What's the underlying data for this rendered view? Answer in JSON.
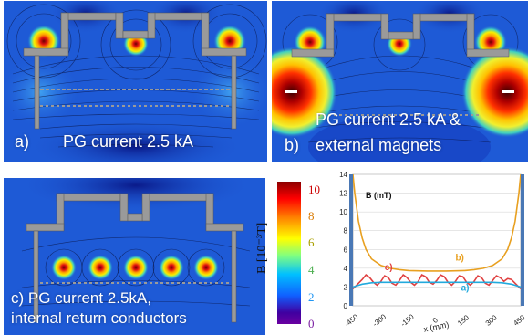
{
  "panels": {
    "a": {
      "letter": "a)",
      "text": "PG current 2.5 kA"
    },
    "b": {
      "letter": "b)",
      "text_line1": "PG current 2.5 kA &",
      "text_line2": "external magnets"
    },
    "c": {
      "text_line1": "c) PG current 2.5kA,",
      "text_line2": "internal return conductors"
    }
  },
  "colorbar": {
    "unit_label": "B [10⁻³T]",
    "ticks": [
      "10",
      "8",
      "6",
      "4",
      "2",
      "0"
    ],
    "tick_colors": [
      "#cc0000",
      "#d97a00",
      "#aaa000",
      "#4caf50",
      "#2196f3",
      "#7b1fa2"
    ],
    "min": 0,
    "max": 10
  },
  "colors": {
    "field_background": "#1e5ad6",
    "conductor_grey": "#9a9a9a",
    "curve_b": "#e8a020",
    "curve_c": "#e04040",
    "curve_a": "#22aadd"
  },
  "chart_data": {
    "type": "line",
    "title": "B (mT)",
    "xlabel": "x (mm)",
    "ylabel": "",
    "xlim": [
      -450,
      450
    ],
    "ylim": [
      0,
      14
    ],
    "xticks": [
      "-450",
      "-300",
      "-150",
      "0",
      "150",
      "300",
      "450"
    ],
    "yticks": [
      "0",
      "2",
      "4",
      "6",
      "8",
      "10",
      "12",
      "14"
    ],
    "series": [
      {
        "name": "b)",
        "x": [
          -450,
          -440,
          -420,
          -400,
          -380,
          -350,
          -300,
          -250,
          -200,
          -150,
          -100,
          -50,
          0,
          50,
          100,
          150,
          200,
          250,
          300,
          350,
          380,
          400,
          420,
          440,
          450
        ],
        "y": [
          14,
          12,
          9,
          7.2,
          6.0,
          5.0,
          4.3,
          4.0,
          3.85,
          3.75,
          3.72,
          3.7,
          3.7,
          3.7,
          3.72,
          3.75,
          3.85,
          4.0,
          4.3,
          5.0,
          6.0,
          7.2,
          9,
          12,
          14
        ]
      },
      {
        "name": "c)",
        "x": [
          -450,
          -425,
          -400,
          -380,
          -360,
          -340,
          -320,
          -300,
          -280,
          -260,
          -240,
          -220,
          -200,
          -180,
          -160,
          -140,
          -120,
          -100,
          -80,
          -60,
          -40,
          -20,
          0,
          20,
          40,
          60,
          80,
          100,
          120,
          140,
          160,
          180,
          200,
          220,
          240,
          260,
          280,
          300,
          320,
          340,
          360,
          380,
          400,
          425,
          450
        ],
        "y": [
          1.8,
          2.3,
          2.8,
          3.3,
          3.0,
          2.5,
          2.2,
          2.6,
          3.2,
          3.0,
          2.4,
          2.2,
          2.7,
          3.3,
          3.0,
          2.5,
          2.2,
          2.6,
          3.3,
          3.1,
          2.5,
          2.3,
          2.7,
          3.3,
          3.1,
          2.5,
          2.2,
          2.6,
          3.2,
          3.1,
          2.5,
          2.2,
          2.6,
          3.2,
          3.0,
          2.4,
          2.2,
          2.7,
          3.2,
          3.0,
          2.6,
          2.9,
          2.8,
          2.3,
          1.8
        ]
      },
      {
        "name": "a)",
        "x": [
          -450,
          -400,
          -350,
          -300,
          -250,
          -200,
          -150,
          -100,
          -50,
          0,
          50,
          100,
          150,
          200,
          250,
          300,
          350,
          400,
          450
        ],
        "y": [
          2.0,
          2.3,
          2.45,
          2.5,
          2.5,
          2.5,
          2.5,
          2.5,
          2.5,
          2.5,
          2.5,
          2.5,
          2.5,
          2.5,
          2.5,
          2.5,
          2.45,
          2.3,
          2.0
        ]
      }
    ],
    "series_label_positions_data": {
      "b)": [
        100,
        4.8
      ],
      "c)": [
        -280,
        3.8
      ],
      "a)": [
        130,
        1.6
      ]
    }
  }
}
